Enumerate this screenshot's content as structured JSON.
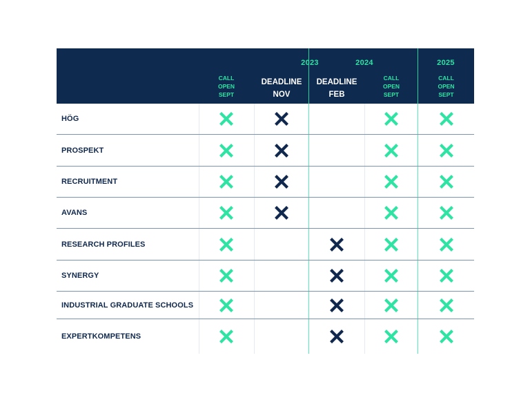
{
  "header": {
    "years": [
      "2023",
      "2024",
      "2025"
    ],
    "columns": [
      {
        "lines": [
          "CALL",
          "OPEN",
          "SEPT"
        ],
        "style": "green"
      },
      {
        "lines": [
          "DEADLINE",
          "NOV"
        ],
        "style": "white"
      },
      {
        "lines": [
          "DEADLINE",
          "FEB"
        ],
        "style": "white"
      },
      {
        "lines": [
          "CALL",
          "OPEN",
          "SEPT"
        ],
        "style": "green"
      },
      {
        "lines": [
          "CALL",
          "OPEN",
          "SEPT"
        ],
        "style": "green"
      }
    ]
  },
  "colors": {
    "header_bg": "#0f2a4f",
    "accent_green": "#2ee3a4",
    "navy": "#10284d"
  },
  "icons": {
    "green_mark": "x-mark-icon-green",
    "navy_mark": "x-mark-icon-navy"
  },
  "rows": [
    {
      "label": "HÖG",
      "marks": [
        "green",
        "navy",
        "",
        "green",
        "green"
      ]
    },
    {
      "label": "PROSPEKT",
      "marks": [
        "green",
        "navy",
        "",
        "green",
        "green"
      ]
    },
    {
      "label": "RECRUITMENT",
      "marks": [
        "green",
        "navy",
        "",
        "green",
        "green"
      ]
    },
    {
      "label": "AVANS",
      "marks": [
        "green",
        "navy",
        "",
        "green",
        "green"
      ]
    },
    {
      "label": "RESEARCH PROFILES",
      "marks": [
        "green",
        "",
        "navy",
        "green",
        "green"
      ]
    },
    {
      "label": "SYNERGY",
      "marks": [
        "green",
        "",
        "navy",
        "green",
        "green"
      ]
    },
    {
      "label": "INDUSTRIAL GRADUATE SCHOOLS",
      "marks": [
        "green",
        "",
        "navy",
        "green",
        "green"
      ]
    },
    {
      "label": "EXPERTKOMPETENS",
      "marks": [
        "green",
        "",
        "navy",
        "green",
        "green"
      ]
    }
  ]
}
